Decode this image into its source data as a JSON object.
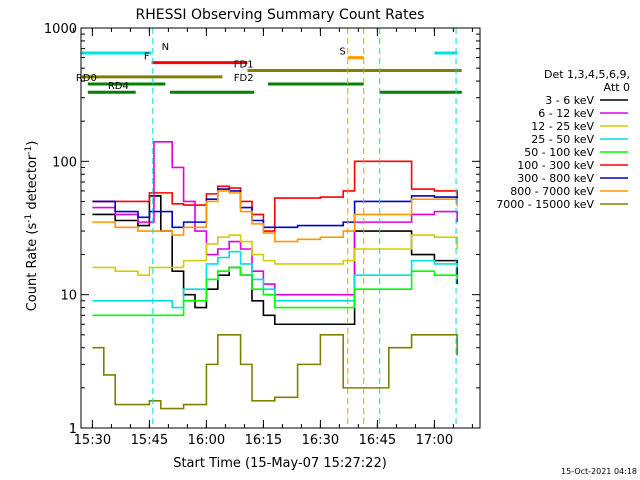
{
  "chart_data": {
    "type": "line",
    "title": "RHESSI Observing Summary Count Rates",
    "xlabel": "Start Time (15-May-07 15:27:22)",
    "ylabel_parts": [
      "Count Rate (s",
      "-1",
      " detector",
      "-1",
      ")"
    ],
    "y_scale": "log",
    "ylim": [
      1,
      1000
    ],
    "xlim_minutes": [
      15.45,
      17.2
    ],
    "x_ticks": [
      {
        "t": 15.5,
        "label": "15:30"
      },
      {
        "t": 15.75,
        "label": "15:45"
      },
      {
        "t": 16.0,
        "label": "16:00"
      },
      {
        "t": 16.25,
        "label": "16:15"
      },
      {
        "t": 16.5,
        "label": "16:30"
      },
      {
        "t": 16.75,
        "label": "16:45"
      },
      {
        "t": 17.0,
        "label": "17:00"
      }
    ],
    "y_ticks": [
      {
        "v": 1,
        "label": "1"
      },
      {
        "v": 10,
        "label": "10"
      },
      {
        "v": 100,
        "label": "100"
      },
      {
        "v": 1000,
        "label": "1000"
      }
    ],
    "legend": {
      "header": [
        "Det 1,3,4,5,6,9,",
        "Att 0"
      ],
      "placement": "right"
    },
    "series": [
      {
        "name": "3 - 6 keV",
        "color": "#000000",
        "points": [
          [
            15.5,
            40
          ],
          [
            15.6,
            36
          ],
          [
            15.7,
            33
          ],
          [
            15.75,
            55
          ],
          [
            15.8,
            30
          ],
          [
            15.85,
            15
          ],
          [
            15.9,
            10
          ],
          [
            15.95,
            8
          ],
          [
            16.0,
            11
          ],
          [
            16.05,
            14
          ],
          [
            16.1,
            16
          ],
          [
            16.15,
            14
          ],
          [
            16.2,
            9
          ],
          [
            16.25,
            7
          ],
          [
            16.3,
            6
          ],
          [
            16.4,
            6
          ],
          [
            16.5,
            6
          ],
          [
            16.6,
            6
          ],
          [
            16.65,
            30
          ],
          [
            16.9,
            20
          ],
          [
            17.0,
            18
          ],
          [
            17.1,
            12
          ]
        ]
      },
      {
        "name": "6 - 12 keV",
        "color": "#e000e0",
        "points": [
          [
            15.5,
            45
          ],
          [
            15.6,
            40
          ],
          [
            15.7,
            35
          ],
          [
            15.77,
            140
          ],
          [
            15.85,
            90
          ],
          [
            15.9,
            50
          ],
          [
            15.95,
            30
          ],
          [
            16.0,
            20
          ],
          [
            16.05,
            22
          ],
          [
            16.1,
            25
          ],
          [
            16.15,
            22
          ],
          [
            16.2,
            15
          ],
          [
            16.25,
            12
          ],
          [
            16.3,
            10
          ],
          [
            16.4,
            10
          ],
          [
            16.5,
            10
          ],
          [
            16.6,
            10
          ],
          [
            16.65,
            35
          ],
          [
            16.9,
            40
          ],
          [
            17.0,
            42
          ],
          [
            17.1,
            35
          ]
        ]
      },
      {
        "name": "12 - 25 keV",
        "color": "#d0d000",
        "points": [
          [
            15.5,
            16
          ],
          [
            15.6,
            15
          ],
          [
            15.7,
            14
          ],
          [
            15.75,
            16
          ],
          [
            15.85,
            16
          ],
          [
            15.9,
            18
          ],
          [
            16.0,
            24
          ],
          [
            16.05,
            27
          ],
          [
            16.1,
            28
          ],
          [
            16.15,
            25
          ],
          [
            16.2,
            20
          ],
          [
            16.25,
            18
          ],
          [
            16.3,
            17
          ],
          [
            16.4,
            17
          ],
          [
            16.5,
            17
          ],
          [
            16.6,
            18
          ],
          [
            16.65,
            22
          ],
          [
            16.9,
            28
          ],
          [
            17.0,
            27
          ],
          [
            17.1,
            22
          ]
        ]
      },
      {
        "name": "25 - 50 keV",
        "color": "#00e0e0",
        "points": [
          [
            15.5,
            9
          ],
          [
            15.6,
            9
          ],
          [
            15.7,
            9
          ],
          [
            15.75,
            9
          ],
          [
            15.85,
            8
          ],
          [
            15.9,
            11
          ],
          [
            16.0,
            17
          ],
          [
            16.05,
            19
          ],
          [
            16.1,
            21
          ],
          [
            16.15,
            17
          ],
          [
            16.2,
            13
          ],
          [
            16.25,
            11
          ],
          [
            16.3,
            9
          ],
          [
            16.4,
            9
          ],
          [
            16.5,
            9
          ],
          [
            16.6,
            9
          ],
          [
            16.65,
            14
          ],
          [
            16.9,
            18
          ],
          [
            17.0,
            17
          ],
          [
            17.1,
            16
          ]
        ]
      },
      {
        "name": "50 - 100 keV",
        "color": "#00ff00",
        "points": [
          [
            15.5,
            7
          ],
          [
            15.6,
            7
          ],
          [
            15.7,
            7
          ],
          [
            15.75,
            7
          ],
          [
            15.85,
            7
          ],
          [
            15.9,
            9
          ],
          [
            16.0,
            13
          ],
          [
            16.05,
            15
          ],
          [
            16.1,
            16
          ],
          [
            16.15,
            14
          ],
          [
            16.2,
            11
          ],
          [
            16.25,
            10
          ],
          [
            16.3,
            8
          ],
          [
            16.4,
            8
          ],
          [
            16.5,
            8
          ],
          [
            16.6,
            8
          ],
          [
            16.65,
            11
          ],
          [
            16.9,
            15
          ],
          [
            17.0,
            14
          ],
          [
            17.1,
            13
          ]
        ]
      },
      {
        "name": "100 - 300 keV",
        "color": "#ff0000",
        "points": [
          [
            15.5,
            50
          ],
          [
            15.6,
            50
          ],
          [
            15.7,
            50
          ],
          [
            15.75,
            58
          ],
          [
            15.85,
            48
          ],
          [
            15.9,
            47
          ],
          [
            16.0,
            57
          ],
          [
            16.05,
            65
          ],
          [
            16.1,
            63
          ],
          [
            16.15,
            50
          ],
          [
            16.2,
            40
          ],
          [
            16.25,
            30
          ],
          [
            16.3,
            53
          ],
          [
            16.4,
            53
          ],
          [
            16.5,
            54
          ],
          [
            16.6,
            60
          ],
          [
            16.65,
            100
          ],
          [
            16.9,
            62
          ],
          [
            17.0,
            60
          ],
          [
            17.1,
            50
          ]
        ]
      },
      {
        "name": "300 - 800 keV",
        "color": "#0000cc",
        "points": [
          [
            15.5,
            50
          ],
          [
            15.6,
            42
          ],
          [
            15.7,
            38
          ],
          [
            15.75,
            42
          ],
          [
            15.85,
            32
          ],
          [
            15.9,
            35
          ],
          [
            16.0,
            52
          ],
          [
            16.05,
            62
          ],
          [
            16.1,
            60
          ],
          [
            16.15,
            45
          ],
          [
            16.2,
            36
          ],
          [
            16.25,
            32
          ],
          [
            16.3,
            32
          ],
          [
            16.4,
            33
          ],
          [
            16.5,
            33
          ],
          [
            16.6,
            35
          ],
          [
            16.65,
            50
          ],
          [
            16.9,
            55
          ],
          [
            17.0,
            54
          ],
          [
            17.1,
            48
          ]
        ]
      },
      {
        "name": "800 - 7000 keV",
        "color": "#ff9900",
        "points": [
          [
            15.5,
            35
          ],
          [
            15.6,
            32
          ],
          [
            15.7,
            30
          ],
          [
            15.75,
            30
          ],
          [
            15.85,
            28
          ],
          [
            15.9,
            32
          ],
          [
            16.0,
            50
          ],
          [
            16.05,
            60
          ],
          [
            16.1,
            58
          ],
          [
            16.15,
            42
          ],
          [
            16.2,
            34
          ],
          [
            16.25,
            29
          ],
          [
            16.3,
            25
          ],
          [
            16.4,
            26
          ],
          [
            16.5,
            27
          ],
          [
            16.6,
            30
          ],
          [
            16.65,
            40
          ],
          [
            16.9,
            52
          ],
          [
            17.0,
            52
          ],
          [
            17.1,
            46
          ]
        ]
      },
      {
        "name": "7000 - 15000 keV",
        "color": "#808000",
        "points": [
          [
            15.5,
            4
          ],
          [
            15.55,
            2.5
          ],
          [
            15.6,
            1.5
          ],
          [
            15.7,
            1.5
          ],
          [
            15.75,
            1.6
          ],
          [
            15.8,
            1.4
          ],
          [
            15.9,
            1.5
          ],
          [
            16.0,
            3
          ],
          [
            16.05,
            5
          ],
          [
            16.1,
            5
          ],
          [
            16.15,
            3
          ],
          [
            16.2,
            1.6
          ],
          [
            16.3,
            1.7
          ],
          [
            16.4,
            3
          ],
          [
            16.5,
            5
          ],
          [
            16.55,
            5
          ],
          [
            16.6,
            2
          ],
          [
            16.65,
            2
          ],
          [
            16.8,
            4
          ],
          [
            16.9,
            5
          ],
          [
            17.0,
            5
          ],
          [
            17.1,
            3.5
          ]
        ]
      }
    ],
    "flags": [
      {
        "label": "N",
        "color": "#00e0e0",
        "y_level": 650,
        "segments": [
          [
            15.45,
            15.76
          ],
          [
            17.0,
            17.1
          ]
        ]
      },
      {
        "label": "S",
        "color": "#ff9900",
        "y_level": 600,
        "segments": [
          [
            16.62,
            16.69
          ]
        ]
      },
      {
        "label": "F",
        "color": "#ff0000",
        "y_level": 550,
        "segments": [
          [
            15.76,
            16.18
          ]
        ]
      },
      {
        "label": "FD1",
        "color": "#808000",
        "y_level": 480,
        "segments": [
          [
            16.18,
            17.12
          ]
        ]
      },
      {
        "label": "FD2",
        "color": "#808000",
        "y_level": 430,
        "segments": [
          [
            15.45,
            16.07
          ]
        ]
      },
      {
        "label": "RD0",
        "color": "#008000",
        "y_level": 380,
        "segments": [
          [
            15.48,
            15.82
          ],
          [
            16.27,
            16.69
          ]
        ]
      },
      {
        "label": "RD4",
        "color": "#008000",
        "y_level": 330,
        "segments": [
          [
            15.48,
            15.69
          ],
          [
            15.84,
            16.21
          ],
          [
            16.76,
            17.12
          ]
        ]
      }
    ],
    "vlines": [
      {
        "t": 15.765,
        "color": "#00e0e0"
      },
      {
        "t": 16.62,
        "color": "#ff9900"
      },
      {
        "t": 16.69,
        "color": "#ff9900"
      },
      {
        "t": 16.76,
        "color": "#00e0e0"
      },
      {
        "t": 17.095,
        "color": "#00e0e0"
      }
    ],
    "footer_timestamp": "15-Oct-2021 04:18"
  }
}
